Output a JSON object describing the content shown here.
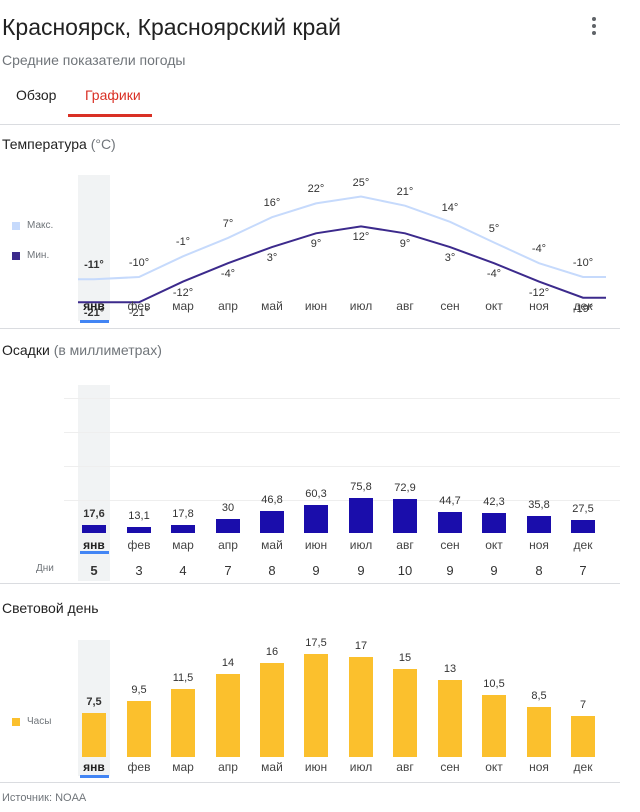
{
  "header": {
    "title": "Красноярск, Красноярский край",
    "subtitle": "Средние показатели погоды",
    "menu_icon": "more-vert-icon"
  },
  "tabs": [
    {
      "label": "Обзор",
      "active": false
    },
    {
      "label": "Графики",
      "active": true
    }
  ],
  "colors": {
    "accent": "#d93025",
    "max_line": "#c6dafc",
    "min_line": "#3c2a8c",
    "precip_bar": "#1a0dab",
    "daylight_bar": "#fbc02d",
    "selection": "#4285f4"
  },
  "months": [
    "янв",
    "фев",
    "мар",
    "апр",
    "май",
    "июн",
    "июл",
    "авг",
    "сен",
    "окт",
    "ноя",
    "дек"
  ],
  "selected_month_index": 0,
  "temperature": {
    "title": "Температура",
    "unit": "(°C)",
    "legend": {
      "max": "Макс.",
      "min": "Мин."
    },
    "max_labels": [
      "-11°",
      "-10°",
      "-1°",
      "7°",
      "16°",
      "22°",
      "25°",
      "21°",
      "14°",
      "5°",
      "-4°",
      "-10°"
    ],
    "min_labels": [
      "-21°",
      "-21°",
      "-12°",
      "-4°",
      "3°",
      "9°",
      "12°",
      "9°",
      "3°",
      "-4°",
      "-12°",
      "-19°"
    ]
  },
  "precipitation": {
    "title": "Осадки",
    "unit": "(в миллиметрах)",
    "days_label": "Дни",
    "value_labels": [
      "17,6",
      "13,1",
      "17,8",
      "30",
      "46,8",
      "60,3",
      "75,8",
      "72,9",
      "44,7",
      "42,3",
      "35,8",
      "27,5"
    ],
    "days": [
      "5",
      "3",
      "4",
      "7",
      "8",
      "9",
      "9",
      "10",
      "9",
      "9",
      "8",
      "7"
    ]
  },
  "daylight": {
    "title": "Световой день",
    "legend": "Часы",
    "value_labels": [
      "7,5",
      "9,5",
      "11,5",
      "14",
      "16",
      "17,5",
      "17",
      "15",
      "13",
      "10,5",
      "8,5",
      "7"
    ]
  },
  "chart_data": [
    {
      "type": "line",
      "title": "Температура (°C)",
      "categories": [
        "янв",
        "фев",
        "мар",
        "апр",
        "май",
        "июн",
        "июл",
        "авг",
        "сен",
        "окт",
        "ноя",
        "дек"
      ],
      "series": [
        {
          "name": "Макс.",
          "values": [
            -11,
            -10,
            -1,
            7,
            16,
            22,
            25,
            21,
            14,
            5,
            -4,
            -10
          ]
        },
        {
          "name": "Мин.",
          "values": [
            -21,
            -21,
            -12,
            -4,
            3,
            9,
            12,
            9,
            3,
            -4,
            -12,
            -19
          ]
        }
      ]
    },
    {
      "type": "bar",
      "title": "Осадки (в миллиметрах)",
      "categories": [
        "янв",
        "фев",
        "мар",
        "апр",
        "май",
        "июн",
        "июл",
        "авг",
        "сен",
        "окт",
        "ноя",
        "дек"
      ],
      "values": [
        17.6,
        13.1,
        17.8,
        30,
        46.8,
        60.3,
        75.8,
        72.9,
        44.7,
        42.3,
        35.8,
        27.5
      ],
      "days": [
        5,
        3,
        4,
        7,
        8,
        9,
        9,
        10,
        9,
        9,
        8,
        7
      ]
    },
    {
      "type": "bar",
      "title": "Световой день",
      "categories": [
        "янв",
        "фев",
        "мар",
        "апр",
        "май",
        "июн",
        "июл",
        "авг",
        "сен",
        "окт",
        "ноя",
        "дек"
      ],
      "series": [
        {
          "name": "Часы",
          "values": [
            7.5,
            9.5,
            11.5,
            14,
            16,
            17.5,
            17,
            15,
            13,
            10.5,
            8.5,
            7
          ]
        }
      ]
    }
  ],
  "footer": {
    "source": "Источник: NOAA"
  }
}
